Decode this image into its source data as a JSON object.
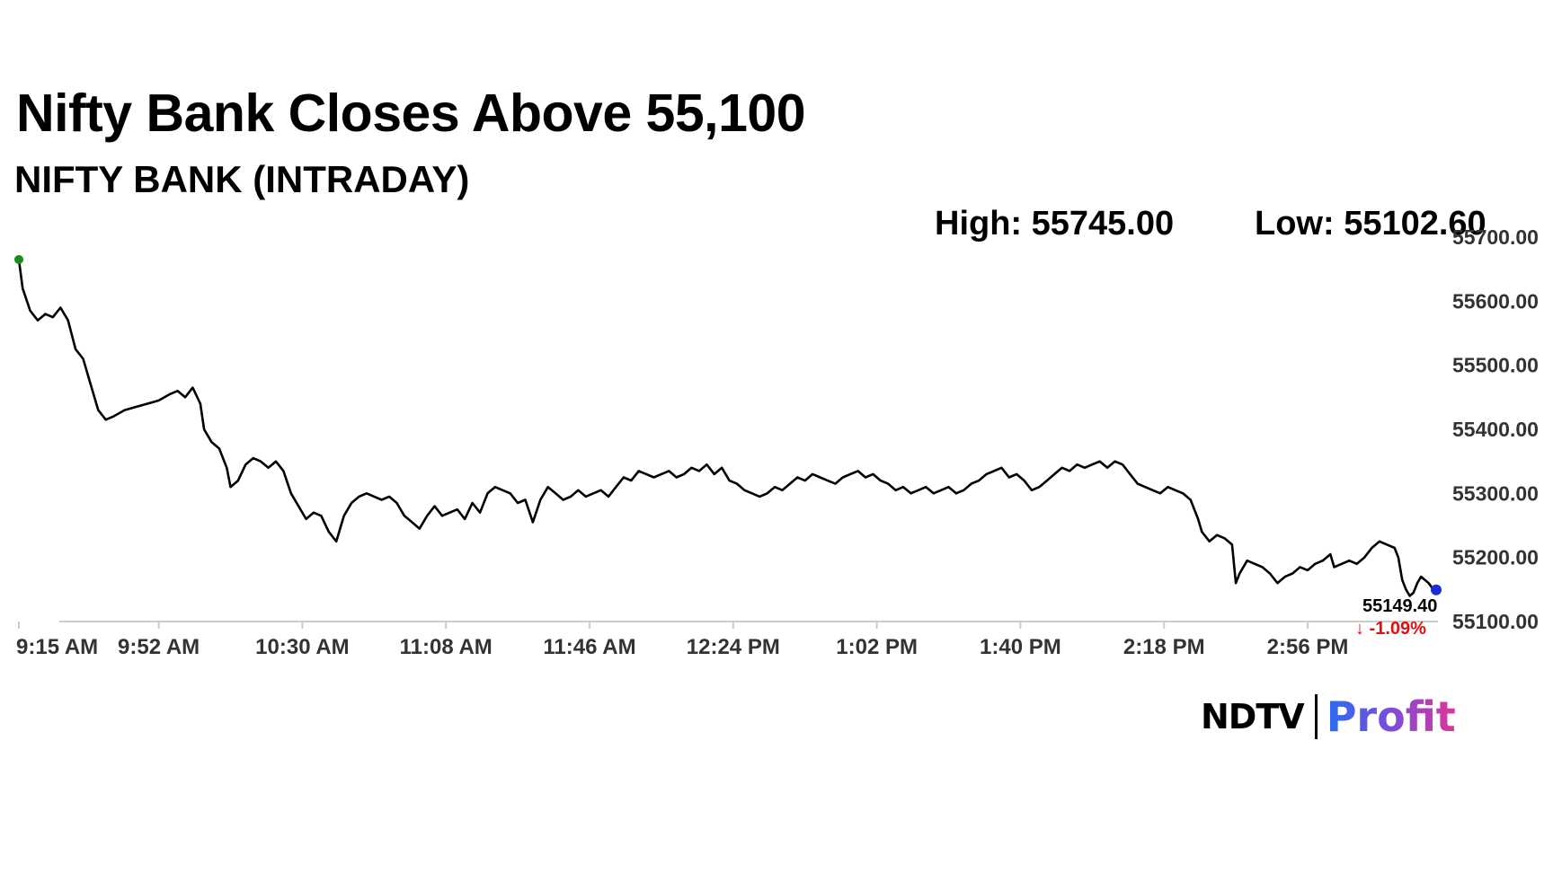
{
  "header": {
    "title": "Nifty Bank Closes Above 55,100",
    "subtitle": "NIFTY BANK (INTRADAY)"
  },
  "stats": {
    "high": "High: 55745.00",
    "low": "Low: 55102.60"
  },
  "last": {
    "value": "55149.40",
    "change": "↓ -1.09%"
  },
  "branding": {
    "left": "NDTV",
    "right": "Profit"
  },
  "colors": {
    "line": "#000000",
    "start_marker": "#1a8c1a",
    "end_marker": "#1a2fd6",
    "negative": "#e01010",
    "axis": "#cccccc"
  },
  "chart_data": {
    "type": "line",
    "title": "NIFTY BANK (INTRADAY)",
    "xlabel": "",
    "ylabel": "",
    "ylim": [
      55100,
      55700
    ],
    "y_ticks": [
      "55700.00",
      "55600.00",
      "55500.00",
      "55400.00",
      "55300.00",
      "55200.00",
      "55100.00"
    ],
    "x_ticks": [
      "9:15 AM",
      "9:52 AM",
      "10:30 AM",
      "11:08 AM",
      "11:46 AM",
      "12:24 PM",
      "1:02 PM",
      "1:40 PM",
      "2:18 PM",
      "2:56 PM"
    ],
    "x_tick_minutes": [
      555,
      592,
      630,
      668,
      706,
      744,
      782,
      820,
      858,
      896
    ],
    "x_range_minutes": [
      555,
      930
    ],
    "grid": false,
    "series": [
      {
        "points": [
          [
            555,
            55665
          ],
          [
            556,
            55620
          ],
          [
            558,
            55585
          ],
          [
            560,
            55570
          ],
          [
            562,
            55580
          ],
          [
            564,
            55575
          ],
          [
            566,
            55590
          ],
          [
            568,
            55570
          ],
          [
            570,
            55525
          ],
          [
            572,
            55510
          ],
          [
            574,
            55470
          ],
          [
            576,
            55430
          ],
          [
            578,
            55415
          ],
          [
            580,
            55420
          ],
          [
            583,
            55430
          ],
          [
            586,
            55435
          ],
          [
            589,
            55440
          ],
          [
            592,
            55445
          ],
          [
            595,
            55455
          ],
          [
            597,
            55460
          ],
          [
            599,
            55450
          ],
          [
            601,
            55465
          ],
          [
            603,
            55440
          ],
          [
            604,
            55400
          ],
          [
            606,
            55380
          ],
          [
            608,
            55370
          ],
          [
            610,
            55340
          ],
          [
            611,
            55310
          ],
          [
            613,
            55320
          ],
          [
            615,
            55345
          ],
          [
            617,
            55355
          ],
          [
            619,
            55350
          ],
          [
            621,
            55340
          ],
          [
            623,
            55350
          ],
          [
            625,
            55335
          ],
          [
            627,
            55300
          ],
          [
            629,
            55280
          ],
          [
            631,
            55260
          ],
          [
            633,
            55270
          ],
          [
            635,
            55265
          ],
          [
            637,
            55240
          ],
          [
            639,
            55225
          ],
          [
            641,
            55265
          ],
          [
            643,
            55285
          ],
          [
            645,
            55295
          ],
          [
            647,
            55300
          ],
          [
            649,
            55295
          ],
          [
            651,
            55290
          ],
          [
            653,
            55295
          ],
          [
            655,
            55285
          ],
          [
            657,
            55265
          ],
          [
            659,
            55255
          ],
          [
            661,
            55245
          ],
          [
            663,
            55265
          ],
          [
            665,
            55280
          ],
          [
            667,
            55265
          ],
          [
            669,
            55270
          ],
          [
            671,
            55275
          ],
          [
            673,
            55260
          ],
          [
            675,
            55285
          ],
          [
            677,
            55270
          ],
          [
            679,
            55300
          ],
          [
            681,
            55310
          ],
          [
            683,
            55305
          ],
          [
            685,
            55300
          ],
          [
            687,
            55285
          ],
          [
            689,
            55290
          ],
          [
            691,
            55255
          ],
          [
            693,
            55290
          ],
          [
            695,
            55310
          ],
          [
            697,
            55300
          ],
          [
            699,
            55290
          ],
          [
            701,
            55295
          ],
          [
            703,
            55305
          ],
          [
            705,
            55295
          ],
          [
            707,
            55300
          ],
          [
            709,
            55305
          ],
          [
            711,
            55295
          ],
          [
            713,
            55310
          ],
          [
            715,
            55325
          ],
          [
            717,
            55320
          ],
          [
            719,
            55335
          ],
          [
            721,
            55330
          ],
          [
            723,
            55325
          ],
          [
            725,
            55330
          ],
          [
            727,
            55335
          ],
          [
            729,
            55325
          ],
          [
            731,
            55330
          ],
          [
            733,
            55340
          ],
          [
            735,
            55335
          ],
          [
            737,
            55345
          ],
          [
            739,
            55330
          ],
          [
            741,
            55340
          ],
          [
            743,
            55320
          ],
          [
            745,
            55315
          ],
          [
            747,
            55305
          ],
          [
            749,
            55300
          ],
          [
            751,
            55295
          ],
          [
            753,
            55300
          ],
          [
            755,
            55310
          ],
          [
            757,
            55305
          ],
          [
            759,
            55315
          ],
          [
            761,
            55325
          ],
          [
            763,
            55320
          ],
          [
            765,
            55330
          ],
          [
            767,
            55325
          ],
          [
            769,
            55320
          ],
          [
            771,
            55315
          ],
          [
            773,
            55325
          ],
          [
            775,
            55330
          ],
          [
            777,
            55335
          ],
          [
            779,
            55325
          ],
          [
            781,
            55330
          ],
          [
            783,
            55320
          ],
          [
            785,
            55315
          ],
          [
            787,
            55305
          ],
          [
            789,
            55310
          ],
          [
            791,
            55300
          ],
          [
            793,
            55305
          ],
          [
            795,
            55310
          ],
          [
            797,
            55300
          ],
          [
            799,
            55305
          ],
          [
            801,
            55310
          ],
          [
            803,
            55300
          ],
          [
            805,
            55305
          ],
          [
            807,
            55315
          ],
          [
            809,
            55320
          ],
          [
            811,
            55330
          ],
          [
            813,
            55335
          ],
          [
            815,
            55340
          ],
          [
            817,
            55325
          ],
          [
            819,
            55330
          ],
          [
            821,
            55320
          ],
          [
            823,
            55305
          ],
          [
            825,
            55310
          ],
          [
            827,
            55320
          ],
          [
            829,
            55330
          ],
          [
            831,
            55340
          ],
          [
            833,
            55335
          ],
          [
            835,
            55345
          ],
          [
            837,
            55340
          ],
          [
            839,
            55345
          ],
          [
            841,
            55350
          ],
          [
            843,
            55340
          ],
          [
            845,
            55350
          ],
          [
            847,
            55345
          ],
          [
            849,
            55330
          ],
          [
            851,
            55315
          ],
          [
            853,
            55310
          ],
          [
            855,
            55305
          ],
          [
            857,
            55300
          ],
          [
            859,
            55310
          ],
          [
            861,
            55305
          ],
          [
            863,
            55300
          ],
          [
            865,
            55290
          ],
          [
            867,
            55260
          ],
          [
            868,
            55240
          ],
          [
            870,
            55225
          ],
          [
            872,
            55235
          ],
          [
            874,
            55230
          ],
          [
            876,
            55220
          ],
          [
            877,
            55160
          ],
          [
            878,
            55175
          ],
          [
            880,
            55195
          ],
          [
            882,
            55190
          ],
          [
            884,
            55185
          ],
          [
            886,
            55175
          ],
          [
            888,
            55160
          ],
          [
            890,
            55170
          ],
          [
            892,
            55175
          ],
          [
            894,
            55185
          ],
          [
            896,
            55180
          ],
          [
            898,
            55190
          ],
          [
            900,
            55195
          ],
          [
            902,
            55205
          ],
          [
            903,
            55185
          ],
          [
            905,
            55190
          ],
          [
            907,
            55195
          ],
          [
            909,
            55190
          ],
          [
            911,
            55200
          ],
          [
            913,
            55215
          ],
          [
            915,
            55225
          ],
          [
            917,
            55220
          ],
          [
            919,
            55215
          ],
          [
            920,
            55200
          ],
          [
            921,
            55165
          ],
          [
            922,
            55150
          ],
          [
            923,
            55140
          ],
          [
            924,
            55145
          ],
          [
            925,
            55160
          ],
          [
            926,
            55170
          ],
          [
            927,
            55165
          ],
          [
            928,
            55160
          ],
          [
            929,
            55152
          ],
          [
            930,
            55149.4
          ]
        ]
      }
    ]
  }
}
